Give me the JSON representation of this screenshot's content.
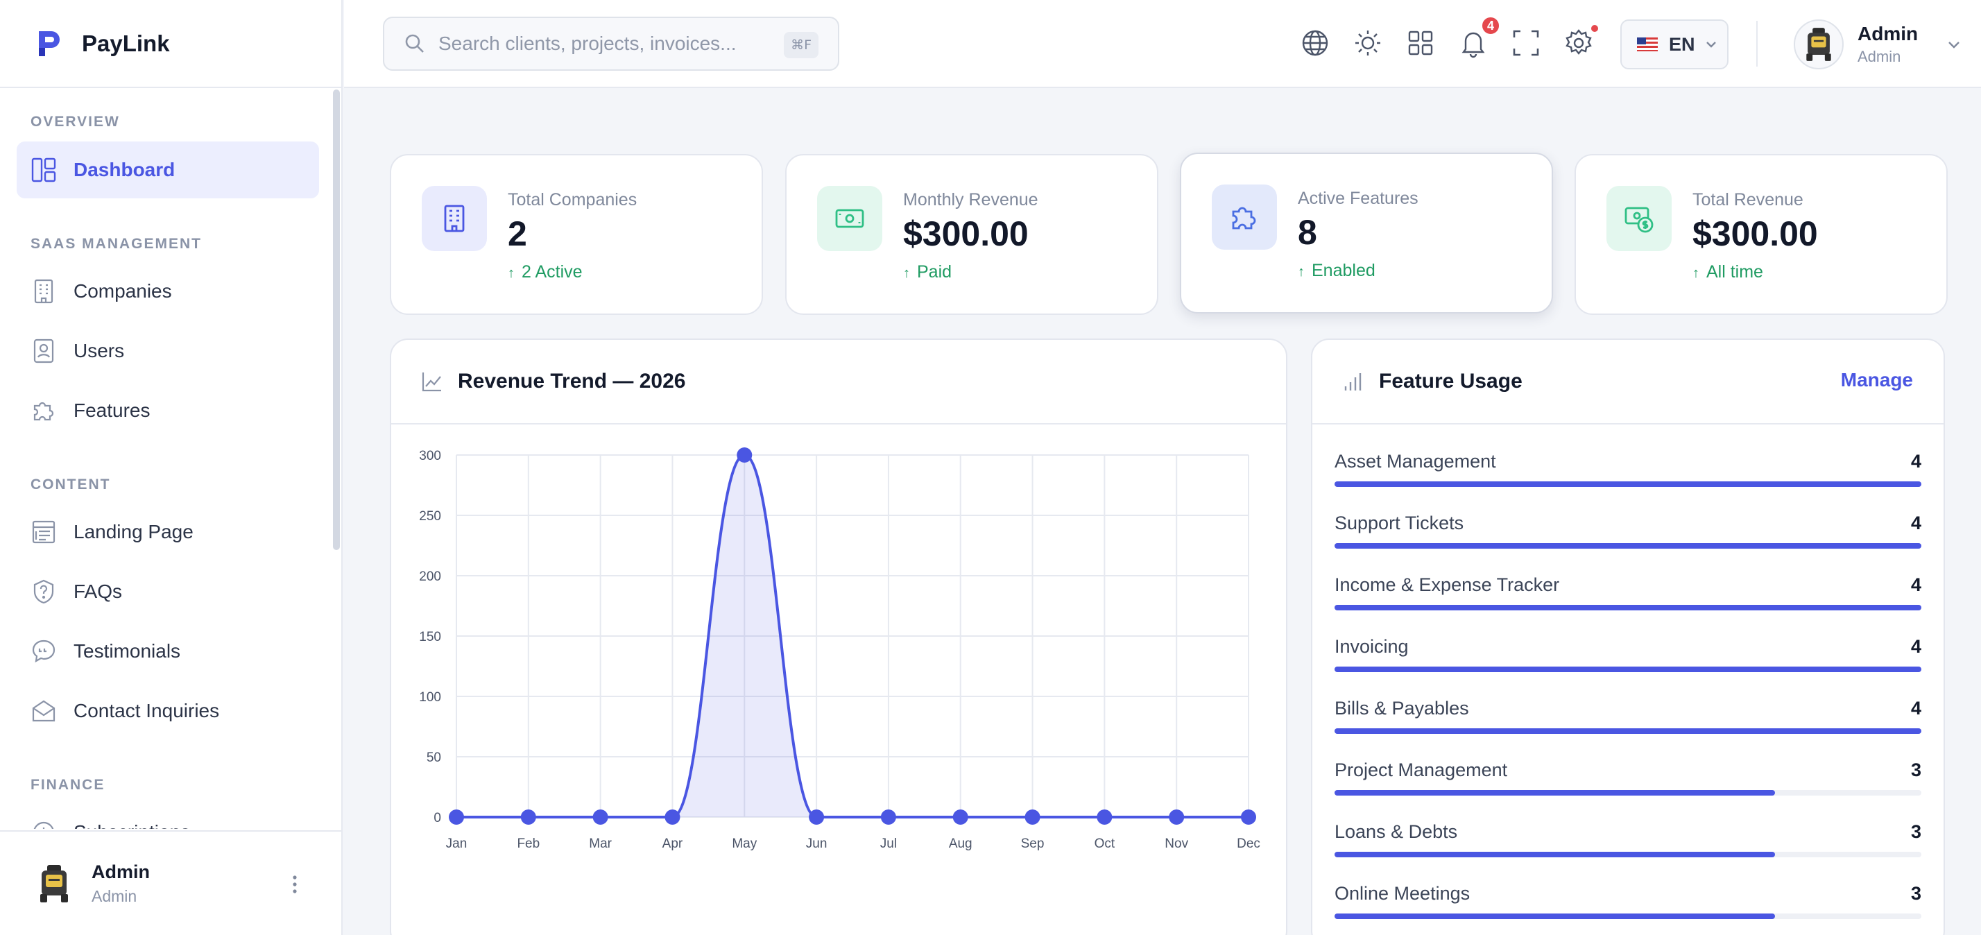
{
  "brand": {
    "name": "PayLink"
  },
  "sidebar": {
    "sections": [
      {
        "title": "OVERVIEW"
      },
      {
        "title": "SAAS MANAGEMENT"
      },
      {
        "title": "CONTENT"
      },
      {
        "title": "FINANCE"
      }
    ],
    "items": [
      {
        "label": "Dashboard",
        "icon": "dashboard-icon",
        "active": true
      },
      {
        "label": "Companies",
        "icon": "building-icon"
      },
      {
        "label": "Users",
        "icon": "user-badge-icon"
      },
      {
        "label": "Features",
        "icon": "puzzle-icon"
      },
      {
        "label": "Landing Page",
        "icon": "layout-icon"
      },
      {
        "label": "FAQs",
        "icon": "question-icon"
      },
      {
        "label": "Testimonials",
        "icon": "chat-quote-icon"
      },
      {
        "label": "Contact Inquiries",
        "icon": "envelope-icon"
      },
      {
        "label": "Subscriptions",
        "icon": "refresh-icon"
      }
    ],
    "footer": {
      "name": "Admin",
      "role": "Admin"
    }
  },
  "topbar": {
    "search_placeholder": "Search clients, projects, invoices...",
    "search_shortcut": "⌘F",
    "notification_count": "4",
    "language": "EN",
    "user": {
      "name": "Admin",
      "role": "Admin"
    },
    "icons": [
      "globe-icon",
      "sun-icon",
      "apps-grid-icon",
      "bell-icon",
      "fullscreen-icon",
      "gear-icon"
    ]
  },
  "stats": [
    {
      "label": "Total Companies",
      "value": "2",
      "sub": "2 Active",
      "icon": "building-icon",
      "icon_bg": "#e9ebfd",
      "icon_color": "#4a56e2"
    },
    {
      "label": "Monthly Revenue",
      "value": "$300.00",
      "sub": "Paid",
      "icon": "cash-icon",
      "icon_bg": "#e3f7ee",
      "icon_color": "#2fbf85"
    },
    {
      "label": "Active Features",
      "value": "8",
      "sub": "Enabled",
      "icon": "puzzle-icon",
      "icon_bg": "#e3e9fb",
      "icon_color": "#4a6ee2"
    },
    {
      "label": "Total Revenue",
      "value": "$300.00",
      "sub": "All time",
      "icon": "money-dollar-icon",
      "icon_bg": "#e3f7ee",
      "icon_color": "#2fbf85"
    }
  ],
  "revenue_panel": {
    "title": "Revenue Trend — 2026"
  },
  "feature_panel": {
    "title": "Feature Usage",
    "manage_label": "Manage",
    "max": 4,
    "features": [
      {
        "name": "Asset Management",
        "value": 4
      },
      {
        "name": "Support Tickets",
        "value": 4
      },
      {
        "name": "Income & Expense Tracker",
        "value": 4
      },
      {
        "name": "Invoicing",
        "value": 4
      },
      {
        "name": "Bills & Payables",
        "value": 4
      },
      {
        "name": "Project Management",
        "value": 3
      },
      {
        "name": "Loans & Debts",
        "value": 3
      },
      {
        "name": "Online Meetings",
        "value": 3
      }
    ]
  },
  "colors": {
    "accent": "#4a56e2",
    "success": "#1f9b62",
    "badge": "#e5484d"
  },
  "chart_data": {
    "type": "line",
    "title": "",
    "categories": [
      "Jan",
      "Feb",
      "Mar",
      "Apr",
      "May",
      "Jun",
      "Jul",
      "Aug",
      "Sep",
      "Oct",
      "Nov",
      "Dec"
    ],
    "values": [
      0,
      0,
      0,
      0,
      300,
      0,
      0,
      0,
      0,
      0,
      0,
      0
    ],
    "ylim": [
      0,
      300
    ],
    "yticks": [
      0,
      50,
      100,
      150,
      200,
      250,
      300
    ],
    "xlabel": "",
    "ylabel": "",
    "grid": true,
    "fill": true,
    "smooth": true,
    "color": "#4a56e2"
  }
}
